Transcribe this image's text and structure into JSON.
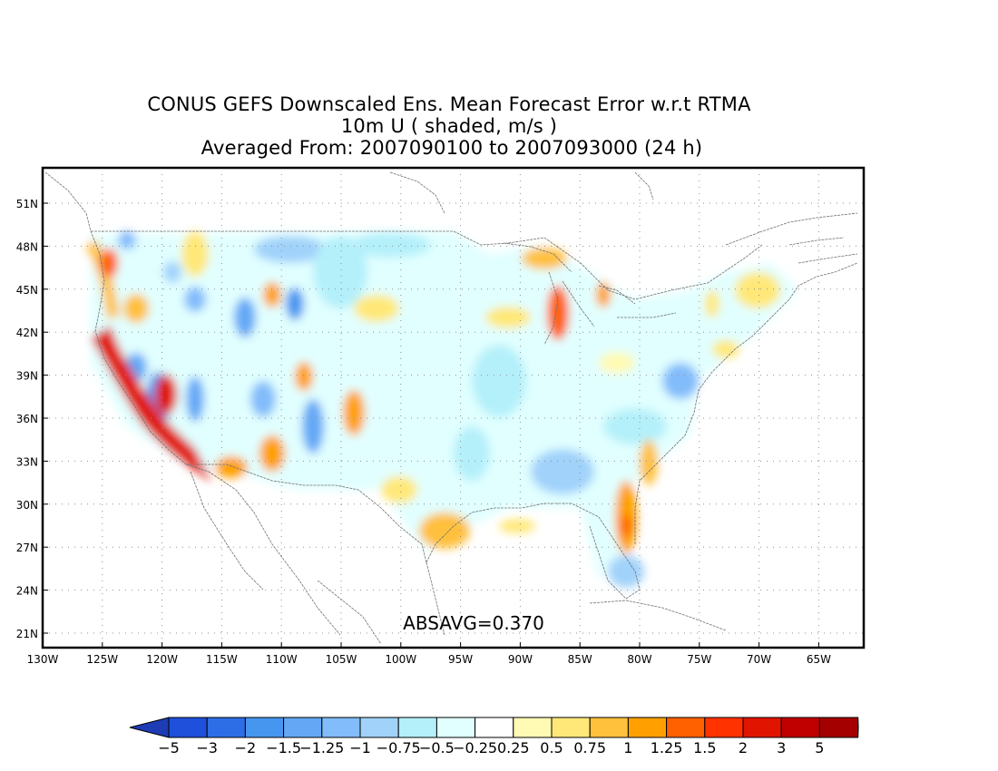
{
  "title": {
    "line1": "CONUS GEFS Downscaled Ens. Mean Forecast Error w.r.t RTMA",
    "line2": "10m U ( shaded, m/s )",
    "line3": "Averaged From: 2007090100 to 2007093000 (24 h)"
  },
  "map": {
    "lat_labels": [
      "51N",
      "48N",
      "45N",
      "42N",
      "39N",
      "36N",
      "33N",
      "30N",
      "27N",
      "24N",
      "21N"
    ],
    "lon_labels": [
      "130W",
      "125W",
      "120W",
      "115W",
      "110W",
      "105W",
      "100W",
      "95W",
      "90W",
      "85W",
      "80W",
      "75W",
      "70W",
      "65W"
    ],
    "annotation": "ABSAVG=0.370",
    "grid": true
  },
  "colorbar": {
    "labels": [
      "-5",
      "-3",
      "-2",
      "-1.5",
      "-1.25",
      "-1",
      "-0.75",
      "-0.5",
      "-0.25",
      "0.25",
      "0.5",
      "0.75",
      "1",
      "1.25",
      "1.5",
      "2",
      "3",
      "5"
    ],
    "colors": [
      "#1e50dc",
      "#2d6ee6",
      "#4696f0",
      "#64a8f5",
      "#82bcfa",
      "#a0d2fa",
      "#b4f0fa",
      "#e1ffff",
      "#ffffff",
      "#fffab4",
      "#ffe878",
      "#ffc03c",
      "#ffa000",
      "#ff6000",
      "#ff3200",
      "#e11400",
      "#c00000",
      "#a50000"
    ],
    "low_arrow_color": "#1e3cb4",
    "high_arrow_color": "#8c0000"
  }
}
